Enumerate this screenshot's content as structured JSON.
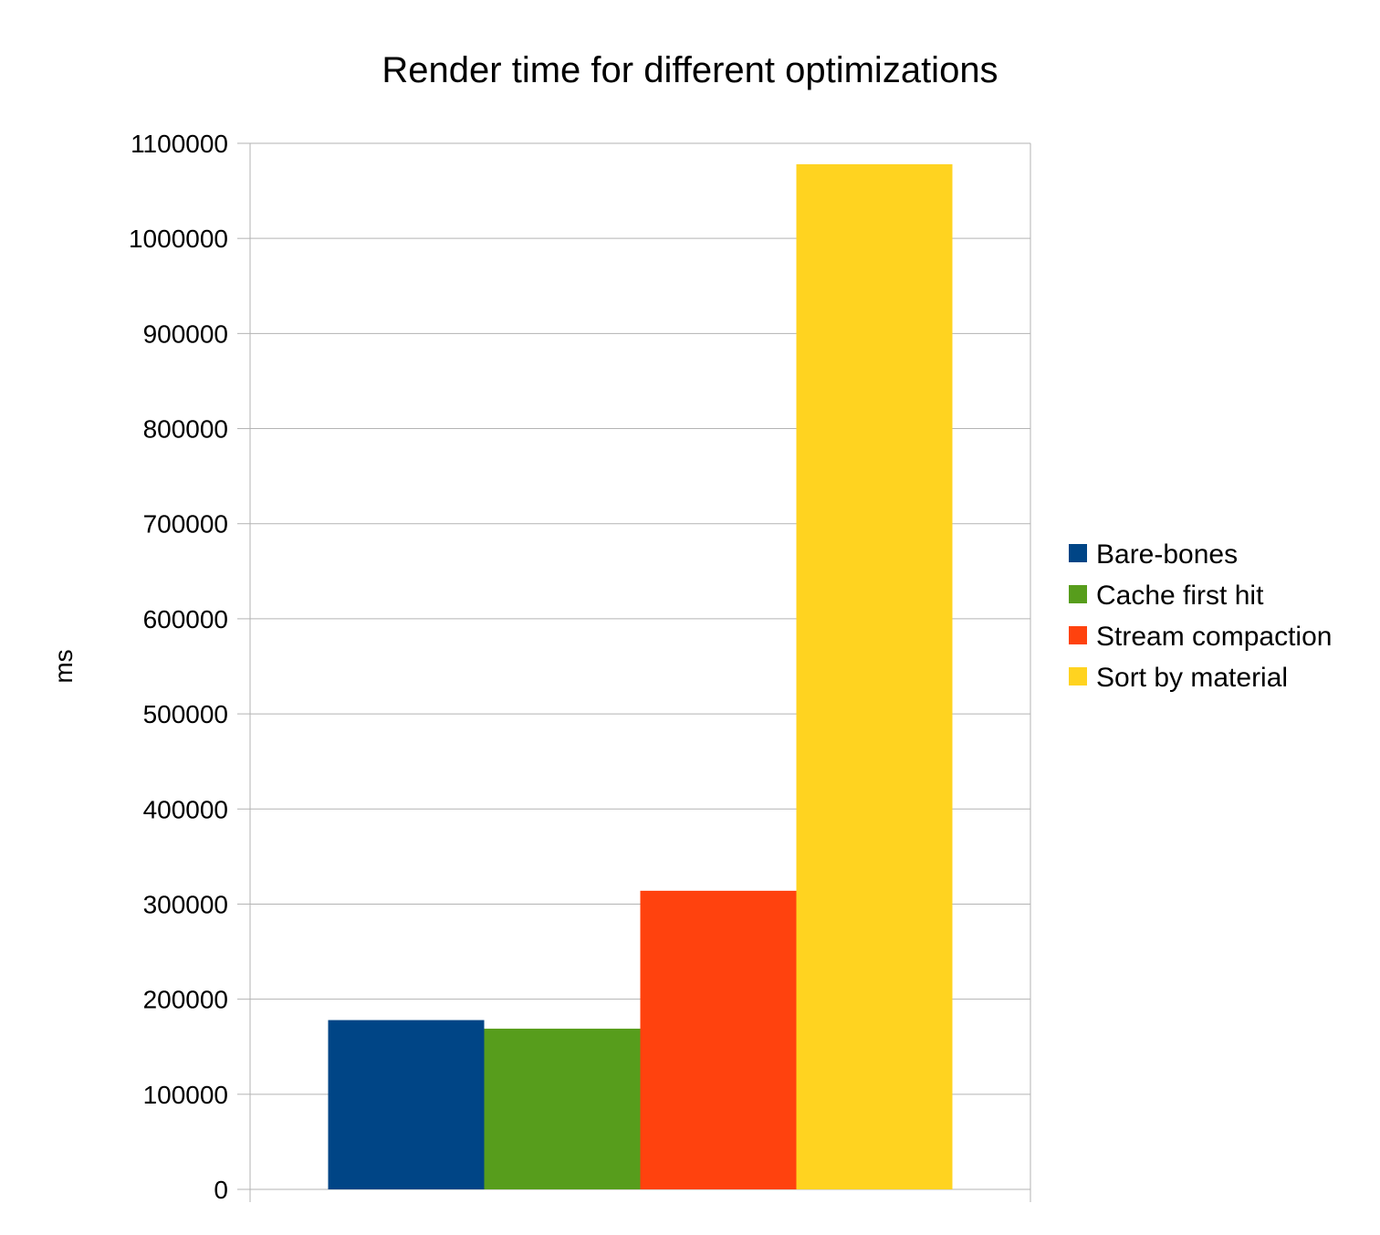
{
  "chart_data": {
    "type": "bar",
    "title": "Render time for different optimizations",
    "xlabel": "",
    "ylabel": "ms",
    "ylim": [
      0,
      1100000
    ],
    "yticks": [
      0,
      100000,
      200000,
      300000,
      400000,
      500000,
      600000,
      700000,
      800000,
      900000,
      1000000,
      1100000
    ],
    "grid": true,
    "legend_position": "right",
    "categories": [
      ""
    ],
    "series": [
      {
        "name": "Bare-bones",
        "color": "#004586",
        "values": [
          178000
        ]
      },
      {
        "name": "Cache first hit",
        "color": "#579d1c",
        "values": [
          169000
        ]
      },
      {
        "name": "Stream compaction",
        "color": "#ff420e",
        "values": [
          314000
        ]
      },
      {
        "name": "Sort by material",
        "color": "#ffd320",
        "values": [
          1078000
        ]
      }
    ]
  }
}
